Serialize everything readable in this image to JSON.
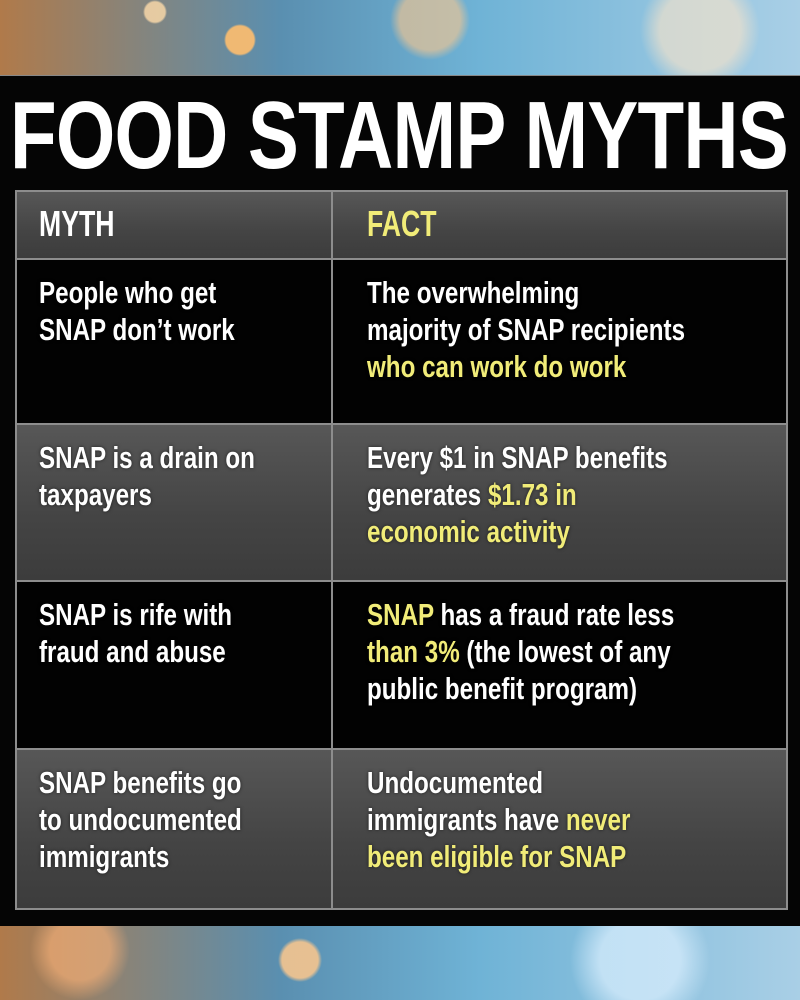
{
  "title": "FOOD STAMP MYTHS",
  "headers": {
    "myth": "MYTH",
    "fact": "FACT"
  },
  "colors": {
    "highlight": "#f1ec78",
    "text": "#ffffff",
    "panel": "#050505",
    "grey_row": "#4a4a4a"
  },
  "rows": [
    {
      "shade": "black",
      "myth": [
        [
          {
            "t": "People who get"
          }
        ],
        [
          {
            "t": "SNAP don’t work"
          }
        ]
      ],
      "fact": [
        [
          {
            "t": "The overwhelming"
          }
        ],
        [
          {
            "t": "majority of SNAP recipients"
          }
        ],
        [
          {
            "t": "who can work do work",
            "hl": true
          }
        ]
      ]
    },
    {
      "shade": "grey",
      "myth": [
        [
          {
            "t": "SNAP is a drain on"
          }
        ],
        [
          {
            "t": "taxpayers"
          }
        ]
      ],
      "fact": [
        [
          {
            "t": "Every $1 in SNAP benefits"
          }
        ],
        [
          {
            "t": "generates "
          },
          {
            "t": "$1.73 in",
            "hl": true
          }
        ],
        [
          {
            "t": "economic activity",
            "hl": true
          }
        ]
      ]
    },
    {
      "shade": "black",
      "myth": [
        [
          {
            "t": "SNAP is rife with"
          }
        ],
        [
          {
            "t": "fraud and abuse"
          }
        ]
      ],
      "fact": [
        [
          {
            "t": "SNAP",
            "hl": true
          },
          {
            "t": " has a fraud rate less"
          }
        ],
        [
          {
            "t": "than 3%",
            "hl": true
          },
          {
            "t": " (the lowest of any"
          }
        ],
        [
          {
            "t": "public benefit program)"
          }
        ]
      ]
    },
    {
      "shade": "grey",
      "myth": [
        [
          {
            "t": "SNAP benefits go"
          }
        ],
        [
          {
            "t": "to undocumented"
          }
        ],
        [
          {
            "t": "immigrants"
          }
        ]
      ],
      "fact": [
        [
          {
            "t": "Undocumented"
          }
        ],
        [
          {
            "t": "immigrants have "
          },
          {
            "t": "never",
            "hl": true
          }
        ],
        [
          {
            "t": "been eligible for SNAP",
            "hl": true
          }
        ]
      ]
    }
  ]
}
